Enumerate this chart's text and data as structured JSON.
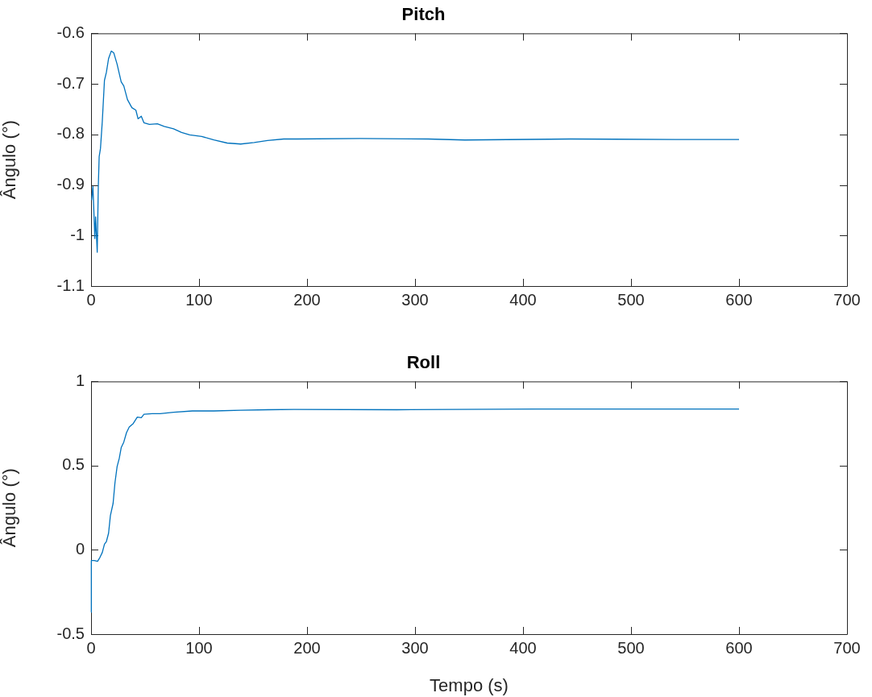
{
  "chart_data": [
    {
      "type": "line",
      "title": "Pitch",
      "ylabel": "Ângulo (°)",
      "xlim": [
        0,
        700
      ],
      "xticks": [
        0,
        100,
        200,
        300,
        400,
        500,
        600,
        700
      ],
      "ylim": [
        -1.1,
        -0.6
      ],
      "yticks": [
        -1.1,
        -1,
        -0.9,
        -0.8,
        -0.7,
        -0.6
      ],
      "grid": false,
      "legend": false,
      "marker": "none",
      "line_style": "solid",
      "series": [
        {
          "color": "#0072bd",
          "x": [
            0.5,
            1.7,
            2.5,
            3.5,
            4.2,
            5,
            5.7,
            6.7,
            7.5,
            8.7,
            10.4,
            12.4,
            14.2,
            16.2,
            18.7,
            21.1,
            24.1,
            27.9,
            30.3,
            33.7,
            37.8,
            41.5,
            43.5,
            46.5,
            49,
            54,
            61.4,
            67.7,
            76.4,
            83.8,
            91.3,
            102.5,
            113.7,
            126,
            138.6,
            151,
            163.4,
            178.4,
            191,
            249,
            312,
            346,
            444,
            541,
            600
          ],
          "values": [
            -0.93,
            -0.903,
            -0.946,
            -1.006,
            -0.963,
            -1.0,
            -1.033,
            -0.903,
            -0.844,
            -0.828,
            -0.774,
            -0.693,
            -0.677,
            -0.65,
            -0.635,
            -0.639,
            -0.661,
            -0.696,
            -0.704,
            -0.731,
            -0.747,
            -0.752,
            -0.769,
            -0.764,
            -0.777,
            -0.78,
            -0.779,
            -0.784,
            -0.789,
            -0.796,
            -0.801,
            -0.804,
            -0.811,
            -0.817,
            -0.819,
            -0.816,
            -0.812,
            -0.809,
            -0.809,
            -0.808,
            -0.809,
            -0.811,
            -0.809,
            -0.81,
            -0.81
          ]
        }
      ]
    },
    {
      "type": "line",
      "title": "Roll",
      "xlabel": "Tempo (s)",
      "ylabel": "Ângulo (°)",
      "xlim": [
        0,
        700
      ],
      "xticks": [
        0,
        100,
        200,
        300,
        400,
        500,
        600,
        700
      ],
      "ylim": [
        -0.5,
        1
      ],
      "yticks": [
        -0.5,
        0,
        0.5,
        1
      ],
      "grid": false,
      "legend": false,
      "marker": "none",
      "line_style": "solid",
      "series": [
        {
          "color": "#0072bd",
          "x": [
            0,
            0.25,
            3,
            6,
            8,
            10.4,
            12.4,
            14.2,
            16.2,
            17.9,
            20.4,
            22.1,
            24.1,
            26.1,
            27.9,
            30.3,
            32.8,
            35.3,
            39,
            42.8,
            46.5,
            49,
            56.5,
            64,
            76.4,
            93.8,
            113.7,
            138.6,
            163.4,
            188,
            283,
            412,
            484,
            600
          ],
          "values": [
            -0.37,
            -0.063,
            -0.063,
            -0.068,
            -0.047,
            -0.015,
            0.034,
            0.05,
            0.099,
            0.204,
            0.276,
            0.397,
            0.494,
            0.543,
            0.607,
            0.64,
            0.696,
            0.729,
            0.75,
            0.788,
            0.785,
            0.805,
            0.809,
            0.809,
            0.817,
            0.825,
            0.825,
            0.829,
            0.832,
            0.834,
            0.832,
            0.836,
            0.836,
            0.836
          ]
        }
      ]
    }
  ]
}
